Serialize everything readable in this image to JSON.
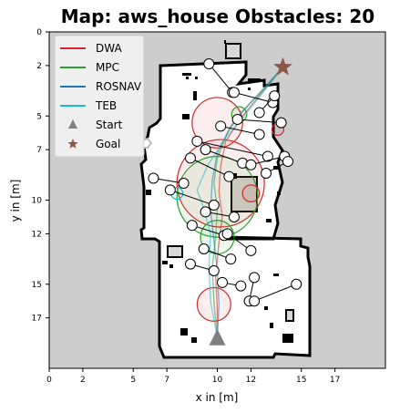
{
  "chart_data": {
    "type": "scatter",
    "title": "Map: aws_house Obstacles: 20",
    "xlabel": "x in [m]",
    "ylabel": "y in [m]",
    "xlim": [
      0,
      20
    ],
    "ylim": [
      20,
      0
    ],
    "x_ticks": [
      0,
      2,
      5,
      7,
      10,
      12,
      15,
      17
    ],
    "y_ticks": [
      0,
      2,
      5,
      7,
      10,
      12,
      15,
      17
    ],
    "legend_position": "top-left",
    "grid": false,
    "series": [
      {
        "name": "DWA",
        "color": "#d62728",
        "marker": "line",
        "path": [
          [
            10,
            18.2
          ],
          [
            10.0,
            16.5
          ],
          [
            9.9,
            14.5
          ],
          [
            10.1,
            12.5
          ],
          [
            10.3,
            11.0
          ],
          [
            10.1,
            9.5
          ],
          [
            10.2,
            8.0
          ],
          [
            10.5,
            6.5
          ],
          [
            11.5,
            5.0
          ],
          [
            12.5,
            3.8
          ],
          [
            13.9,
            2.1
          ]
        ]
      },
      {
        "name": "MPC",
        "color": "#2ca02c",
        "marker": "line",
        "path": [
          [
            10,
            18.2
          ],
          [
            9.8,
            16.0
          ],
          [
            9.7,
            14.0
          ],
          [
            9.9,
            12.2
          ],
          [
            10.0,
            10.5
          ],
          [
            9.8,
            9.0
          ],
          [
            10.0,
            7.5
          ],
          [
            10.6,
            6.0
          ],
          [
            11.4,
            4.8
          ],
          [
            12.6,
            3.6
          ],
          [
            13.9,
            2.1
          ]
        ]
      },
      {
        "name": "ROSNAV",
        "color": "#1f77b4",
        "marker": "line",
        "path": [
          [
            10,
            18.2
          ],
          [
            10.1,
            16.2
          ],
          [
            10.0,
            14.2
          ],
          [
            9.8,
            12.4
          ],
          [
            9.6,
            10.6
          ],
          [
            9.7,
            8.8
          ],
          [
            10.0,
            7.2
          ],
          [
            10.8,
            5.6
          ],
          [
            11.8,
            4.4
          ],
          [
            12.9,
            3.2
          ],
          [
            13.9,
            2.1
          ]
        ]
      },
      {
        "name": "TEB",
        "color": "#17becf",
        "marker": "line",
        "path": [
          [
            10,
            18.2
          ],
          [
            9.6,
            16.0
          ],
          [
            9.5,
            14.0
          ],
          [
            9.6,
            12.0
          ],
          [
            9.2,
            10.5
          ],
          [
            8.8,
            9.4
          ],
          [
            9.4,
            8.0
          ],
          [
            10.4,
            6.4
          ],
          [
            11.6,
            5.0
          ],
          [
            12.8,
            3.5
          ],
          [
            13.9,
            2.1
          ]
        ]
      }
    ],
    "start": {
      "name": "Start",
      "x": 10.0,
      "y": 18.2,
      "marker": "triangle",
      "color": "#808080"
    },
    "goal": {
      "name": "Goal",
      "x": 13.9,
      "y": 2.1,
      "marker": "star",
      "color": "#8c564b"
    },
    "obstacle_waypoints": [
      [
        [
          9.5,
          1.9
        ],
        [
          10.9,
          3.6
        ]
      ],
      [
        [
          11.0,
          3.6
        ],
        [
          13.3,
          4.2
        ]
      ],
      [
        [
          12.5,
          4.8
        ],
        [
          13.4,
          3.8
        ]
      ],
      [
        [
          11.2,
          5.2
        ],
        [
          13.8,
          5.4
        ]
      ],
      [
        [
          10.2,
          5.6
        ],
        [
          12.5,
          6.1
        ]
      ],
      [
        [
          8.8,
          6.5
        ],
        [
          13.0,
          7.4
        ]
      ],
      [
        [
          9.3,
          7.0
        ],
        [
          11.5,
          7.8
        ]
      ],
      [
        [
          8.4,
          7.5
        ],
        [
          10.7,
          8.6
        ]
      ],
      [
        [
          12.0,
          7.9
        ],
        [
          14.0,
          7.4
        ]
      ],
      [
        [
          12.9,
          8.4
        ],
        [
          14.2,
          7.7
        ]
      ],
      [
        [
          6.2,
          8.7
        ],
        [
          8.0,
          9.0
        ]
      ],
      [
        [
          7.2,
          9.4
        ],
        [
          9.8,
          10.3
        ]
      ],
      [
        [
          9.3,
          10.7
        ],
        [
          11.0,
          11.0
        ]
      ],
      [
        [
          8.5,
          11.5
        ],
        [
          10.4,
          12.1
        ]
      ],
      [
        [
          10.6,
          12.0
        ],
        [
          12.0,
          13.0
        ]
      ],
      [
        [
          8.4,
          13.8
        ],
        [
          9.8,
          14.2
        ]
      ],
      [
        [
          10.3,
          14.9
        ],
        [
          11.4,
          15.1
        ]
      ],
      [
        [
          11.9,
          16.0
        ],
        [
          12.2,
          14.6
        ]
      ],
      [
        [
          12.2,
          16.0
        ],
        [
          14.7,
          15.0
        ]
      ],
      [
        [
          9.2,
          12.9
        ],
        [
          10.8,
          13.5
        ]
      ]
    ],
    "obstacle_circles": [
      {
        "x": 10.0,
        "y": 5.4,
        "r": 1.5,
        "color": "#d62728"
      },
      {
        "x": 10.2,
        "y": 9.0,
        "r": 2.6,
        "color": "#d62728"
      },
      {
        "x": 10.0,
        "y": 9.8,
        "r": 2.4,
        "color": "#2ca02c"
      },
      {
        "x": 10.0,
        "y": 12.2,
        "r": 1.0,
        "color": "#2ca02c"
      },
      {
        "x": 9.8,
        "y": 16.2,
        "r": 1.0,
        "color": "#d62728"
      },
      {
        "x": 11.3,
        "y": 4.9,
        "r": 0.45,
        "color": "#2ca02c"
      },
      {
        "x": 13.6,
        "y": 5.8,
        "r": 0.35,
        "color": "#d62728"
      },
      {
        "x": 7.6,
        "y": 9.6,
        "r": 0.35,
        "color": "#17becf"
      },
      {
        "x": 12.0,
        "y": 9.6,
        "r": 0.5,
        "color": "#d62728"
      }
    ]
  }
}
